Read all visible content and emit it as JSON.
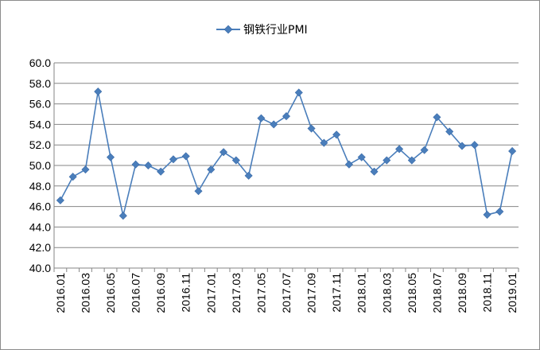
{
  "chart_data": {
    "type": "line",
    "x": [
      "2016.01",
      "2016.02",
      "2016.03",
      "2016.04",
      "2016.05",
      "2016.06",
      "2016.07",
      "2016.08",
      "2016.09",
      "2016.10",
      "2016.11",
      "2016.12",
      "2017.01",
      "2017.02",
      "2017.03",
      "2017.04",
      "2017.05",
      "2017.06",
      "2017.07",
      "2017.08",
      "2017.09",
      "2017.10",
      "2017.11",
      "2017.12",
      "2018.01",
      "2018.02",
      "2018.03",
      "2018.04",
      "2018.05",
      "2018.06",
      "2018.07",
      "2018.08",
      "2018.09",
      "2018.10",
      "2018.11",
      "2018.12",
      "2019.01"
    ],
    "x_tick_labels": [
      "2016.01",
      "2016.03",
      "2016.05",
      "2016.07",
      "2016.09",
      "2016.11",
      "2017.01",
      "2017.03",
      "2017.05",
      "2017.07",
      "2017.09",
      "2017.11",
      "2018.01",
      "2018.03",
      "2018.05",
      "2018.07",
      "2018.09",
      "2018.11",
      "2019.01"
    ],
    "series": [
      {
        "name": "钢铁行业PMI",
        "color": "#4a7ebb",
        "values": [
          46.6,
          48.9,
          49.6,
          57.2,
          50.8,
          45.1,
          50.1,
          50.0,
          49.4,
          50.6,
          50.9,
          47.5,
          49.6,
          51.3,
          50.5,
          49.0,
          54.6,
          54.0,
          54.8,
          57.1,
          53.6,
          52.2,
          53.0,
          50.1,
          50.8,
          49.4,
          50.5,
          51.6,
          50.5,
          51.5,
          54.7,
          53.3,
          51.9,
          52.0,
          45.2,
          45.5,
          51.4
        ]
      }
    ],
    "y_tick_labels": [
      "40.0",
      "42.0",
      "44.0",
      "46.0",
      "48.0",
      "50.0",
      "52.0",
      "54.0",
      "56.0",
      "58.0",
      "60.0"
    ],
    "ylim": [
      40,
      60
    ],
    "grid": true,
    "legend_position": "top-center",
    "title": "",
    "xlabel": "",
    "ylabel": "",
    "marker": "diamond"
  }
}
